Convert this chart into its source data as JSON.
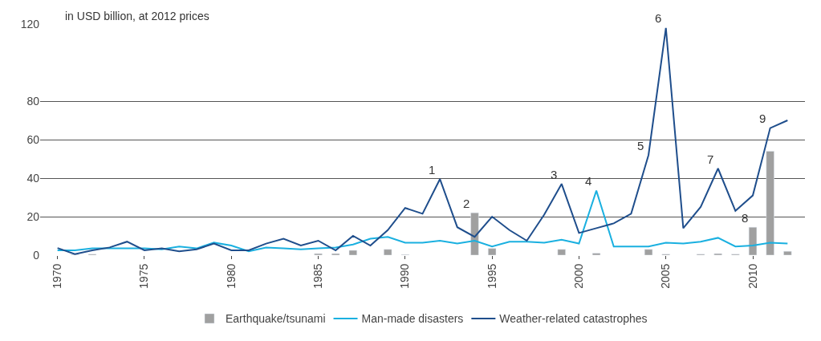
{
  "chart_data": {
    "type": "line",
    "ylabel": "in USD billion, at 2012 prices",
    "x": [
      1970,
      1971,
      1972,
      1973,
      1974,
      1975,
      1976,
      1977,
      1978,
      1979,
      1980,
      1981,
      1982,
      1983,
      1984,
      1985,
      1986,
      1987,
      1988,
      1989,
      1990,
      1991,
      1992,
      1993,
      1994,
      1995,
      1996,
      1997,
      1998,
      1999,
      2000,
      2001,
      2002,
      2003,
      2004,
      2005,
      2006,
      2007,
      2008,
      2009,
      2010,
      2011,
      2012
    ],
    "series": [
      {
        "name": "Earthquake/tsunami",
        "type": "bar",
        "color": "#a0a0a0",
        "values": [
          null,
          0.3,
          0.5,
          null,
          null,
          null,
          null,
          null,
          null,
          null,
          null,
          null,
          null,
          null,
          null,
          0.8,
          0.8,
          2.5,
          null,
          3,
          0.3,
          null,
          null,
          null,
          22,
          3.5,
          null,
          null,
          null,
          3,
          null,
          1,
          null,
          null,
          3,
          0.5,
          null,
          0.5,
          0.8,
          0.5,
          14.5,
          54,
          2
        ]
      },
      {
        "name": "Man-made disasters",
        "color": "#1ab0e0",
        "values": [
          2.5,
          2.5,
          3.5,
          3.5,
          3.5,
          3.5,
          3,
          4.5,
          3.5,
          6.5,
          5,
          2,
          4,
          3.5,
          3,
          3.5,
          4,
          5.5,
          8.5,
          9.5,
          6.5,
          6.5,
          7.5,
          6,
          7.5,
          4.5,
          7,
          7,
          6.5,
          8,
          6,
          33.5,
          4.5,
          4.5,
          4.5,
          6.5,
          6,
          7,
          9,
          4.5,
          5,
          6.5,
          6
        ]
      },
      {
        "name": "Weather-related catastrophes",
        "color": "#1f4e8c",
        "values": [
          3.7,
          0.5,
          2.5,
          4,
          7,
          2.5,
          3.5,
          2,
          3,
          6,
          2.5,
          2.5,
          6,
          8.5,
          5,
          7.5,
          2.5,
          10,
          5,
          13,
          24.5,
          21.5,
          39.5,
          14.5,
          9.5,
          20,
          13,
          7.5,
          21,
          37,
          11.5,
          14,
          16.5,
          21.5,
          52,
          118,
          14,
          25,
          45,
          23,
          31,
          66,
          70
        ]
      }
    ],
    "annotations": [
      {
        "text": "1",
        "x": 1992,
        "y": 39.5
      },
      {
        "text": "2",
        "x": 1994,
        "y": 22
      },
      {
        "text": "3",
        "x": 1999,
        "y": 37
      },
      {
        "text": "4",
        "x": 2001,
        "y": 33.5
      },
      {
        "text": "5",
        "x": 2004,
        "y": 52
      },
      {
        "text": "6",
        "x": 2005,
        "y": 118
      },
      {
        "text": "7",
        "x": 2008,
        "y": 45
      },
      {
        "text": "8",
        "x": 2010,
        "y": 14.5
      },
      {
        "text": "9",
        "x": 2011,
        "y": 66
      }
    ],
    "xlim": [
      1969,
      2013
    ],
    "xticks": [
      1970,
      1975,
      1980,
      1985,
      1990,
      1995,
      2000,
      2005,
      2010
    ],
    "ylim": [
      0,
      120
    ],
    "yticks": [
      0,
      20,
      40,
      60,
      80,
      120
    ],
    "grid": "y",
    "legend": "bottom"
  }
}
